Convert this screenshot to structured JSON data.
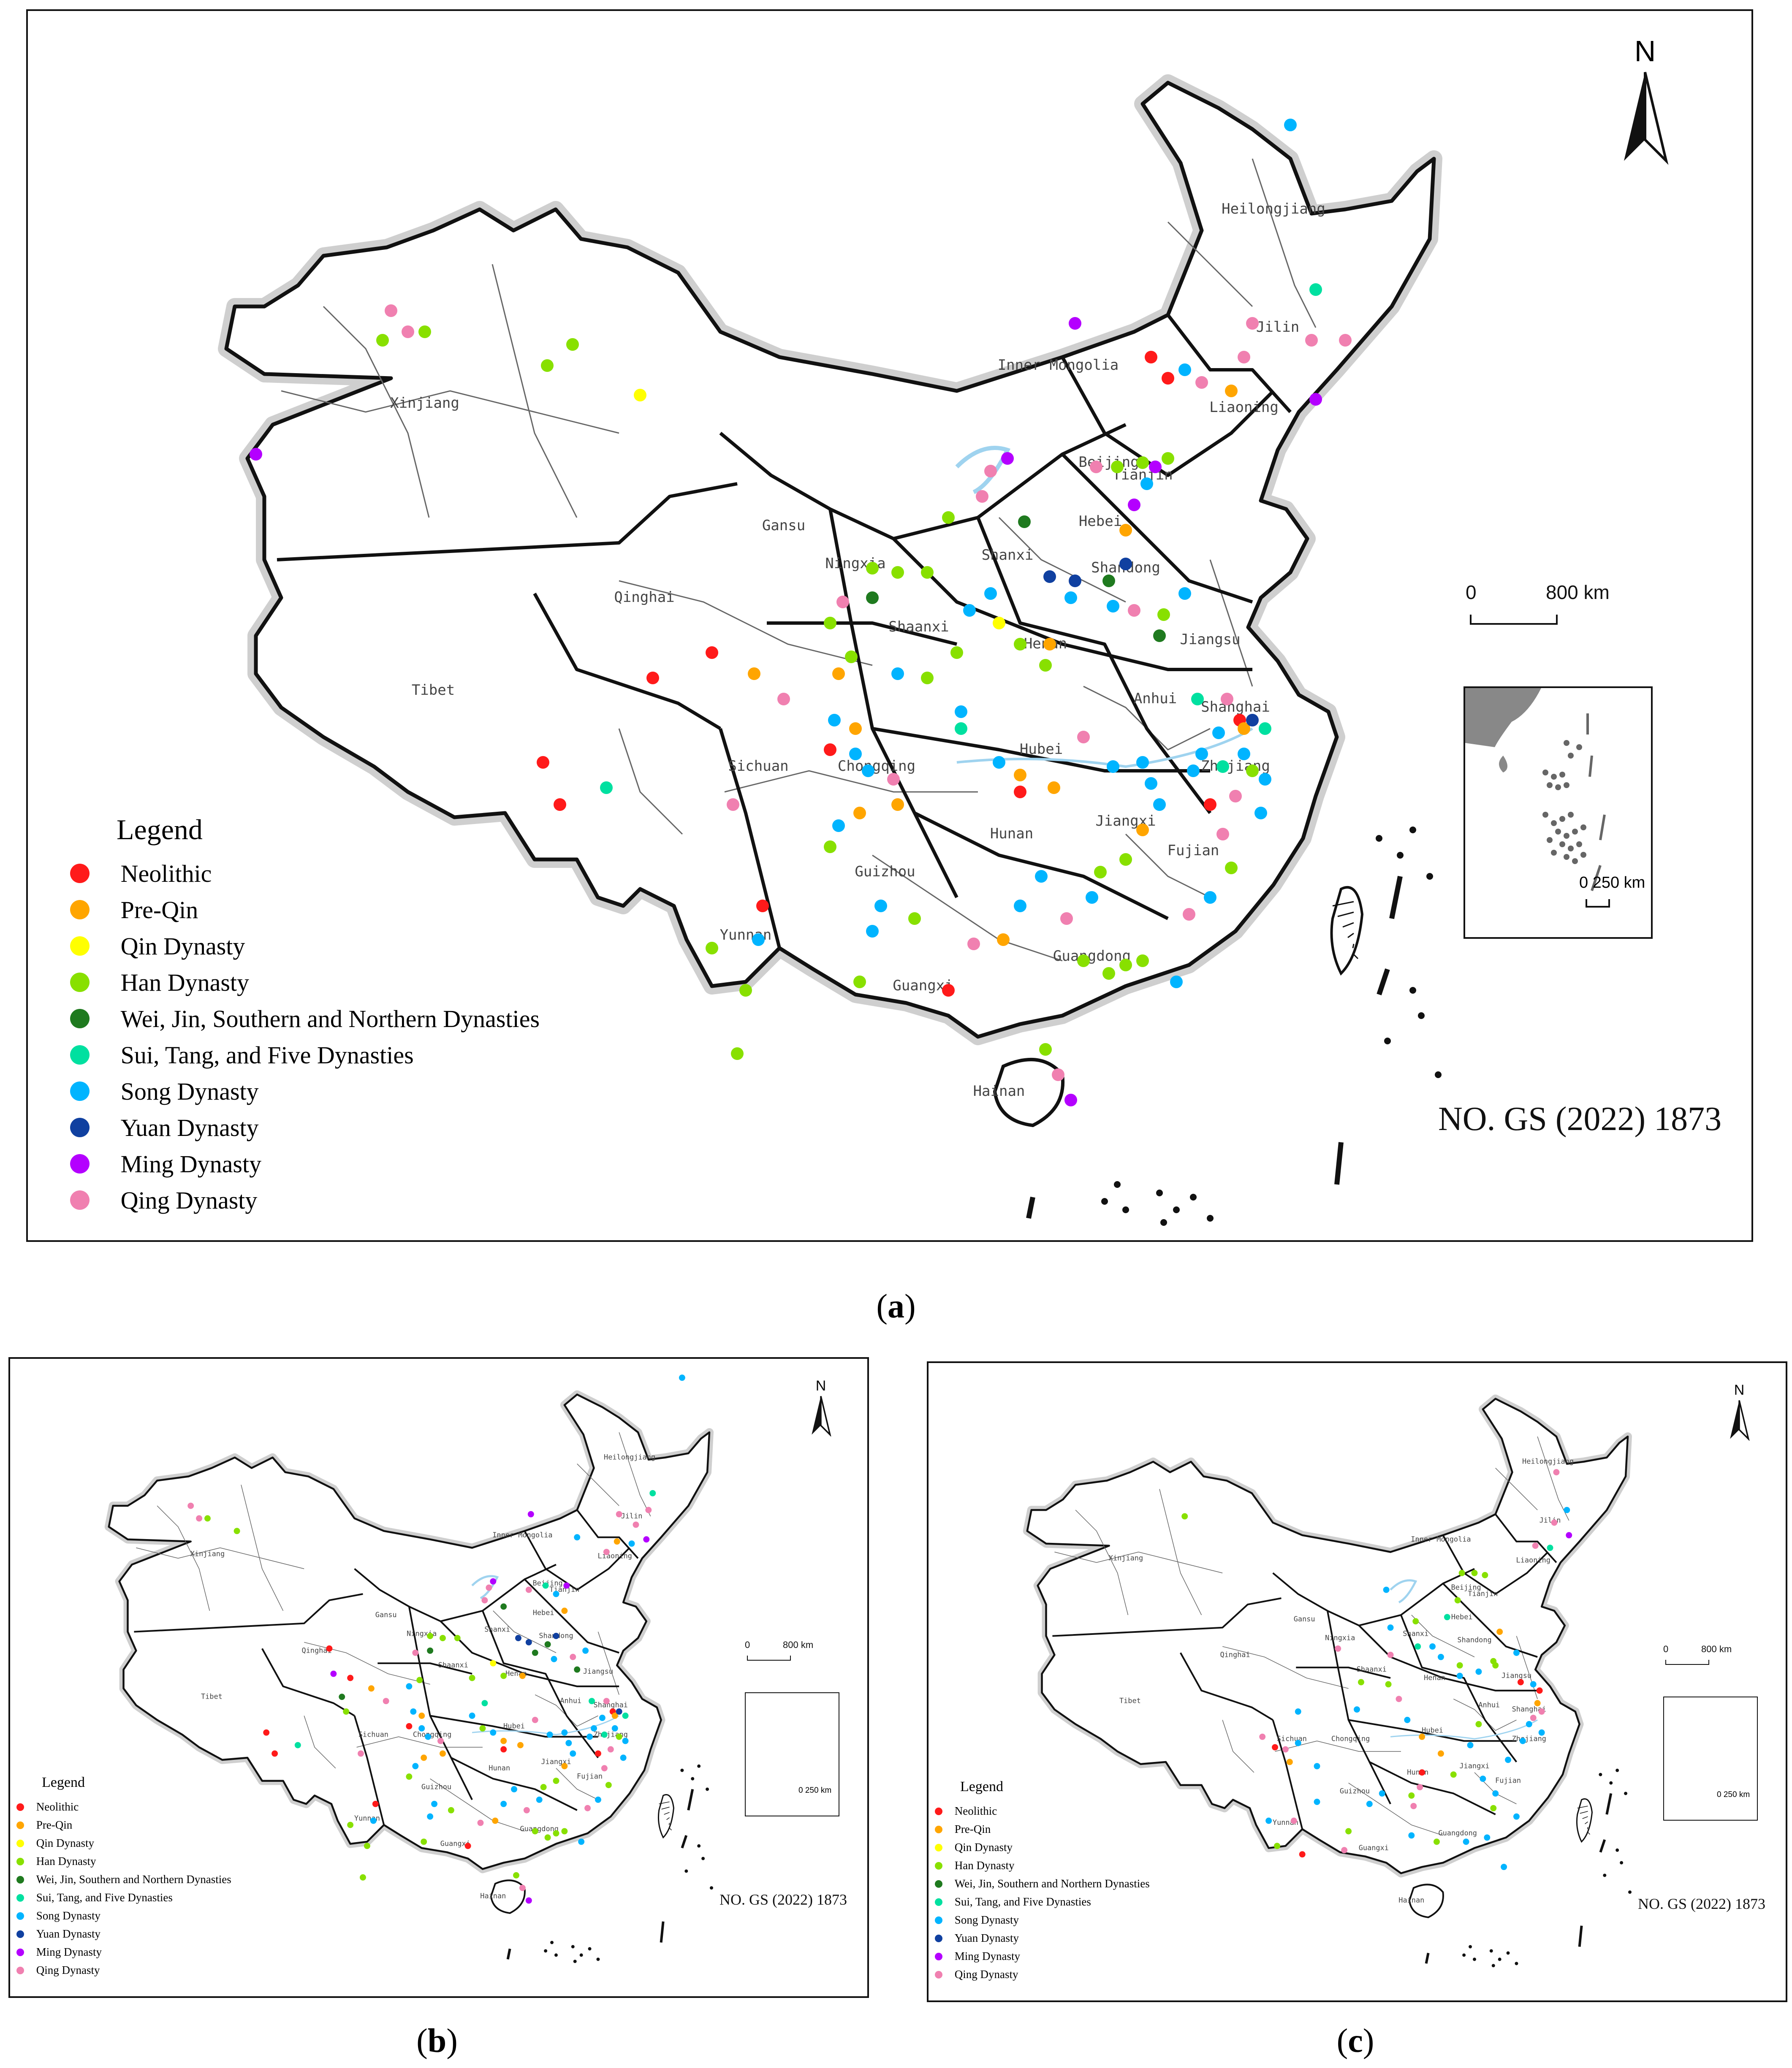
{
  "panels": [
    {
      "id": "a",
      "caption_letter": "a",
      "no_text": "NO. GS (2022) 1873"
    },
    {
      "id": "b",
      "caption_letter": "b",
      "no_text": "NO. GS (2022) 1873"
    },
    {
      "id": "c",
      "caption_letter": "c",
      "no_text": "NO. GS (2022) 1873"
    }
  ],
  "legend": {
    "title": "Legend",
    "items": [
      {
        "label": "Neolithic",
        "color": "#ff1a1a"
      },
      {
        "label": "Pre-Qin",
        "color": "#ffa500"
      },
      {
        "label": "Qin Dynasty",
        "color": "#ffff00"
      },
      {
        "label": "Han Dynasty",
        "color": "#88e000"
      },
      {
        "label": "Wei, Jin, Southern and Northern Dynasties",
        "color": "#1f7a1f"
      },
      {
        "label": "Sui, Tang, and Five Dynasties",
        "color": "#00e0a0"
      },
      {
        "label": "Song Dynasty",
        "color": "#00b4ff"
      },
      {
        "label": "Yuan Dynasty",
        "color": "#1040a0"
      },
      {
        "label": "Ming Dynasty",
        "color": "#b400ff"
      },
      {
        "label": "Qing Dynasty",
        "color": "#f080b0"
      }
    ]
  },
  "north_label": "N",
  "scale_main": {
    "zero": "0",
    "value": "800 km"
  },
  "scale_inset": {
    "label": "0 250 km"
  },
  "provinces": [
    "Heilongjiang",
    "Jilin",
    "Liaoning",
    "Inner Mongolia",
    "Xinjiang",
    "Beijing",
    "Tianjin",
    "Hebei",
    "Shanxi",
    "Shandong",
    "Gansu",
    "Ningxia",
    "Qinghai",
    "Shaanxi",
    "Henan",
    "Jiangsu",
    "Anhui",
    "Shanghai",
    "Tibet",
    "Sichuan",
    "Chongqing",
    "Hubei",
    "Zhejiang",
    "Jiangxi",
    "Hunan",
    "Guizhou",
    "Fujian",
    "Yunnan",
    "Guangxi",
    "Guangdong",
    "Hainan"
  ]
}
